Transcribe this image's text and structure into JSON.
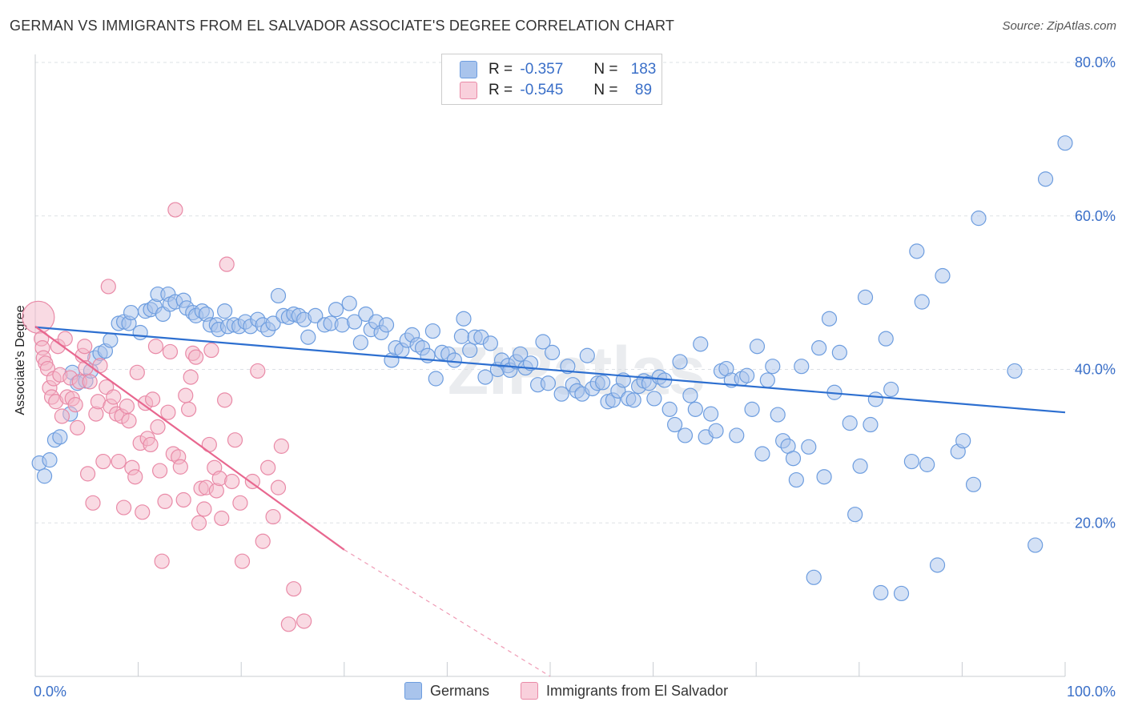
{
  "title": "GERMAN VS IMMIGRANTS FROM EL SALVADOR ASSOCIATE'S DEGREE CORRELATION CHART",
  "source": "Source: ZipAtlas.com",
  "watermark": "ZIPatlas",
  "legend": {
    "rows": [
      {
        "r_label": "R =",
        "r_value": "-0.357",
        "n_label": "N =",
        "n_value": "183",
        "color": "#a9c4ec"
      },
      {
        "r_label": "R =",
        "r_value": "-0.545",
        "n_label": "N =",
        "n_value": "89",
        "color": "#f4b6c8"
      }
    ]
  },
  "chart_data": {
    "type": "scatter",
    "title": "GERMAN VS IMMIGRANTS FROM EL SALVADOR ASSOCIATE'S DEGREE CORRELATION CHART",
    "xlabel": "",
    "ylabel": "Associate's Degree",
    "xlim": [
      0,
      100
    ],
    "ylim": [
      0,
      80
    ],
    "x_tick_labels": [
      "0.0%",
      "100.0%"
    ],
    "y_ticks": [
      20,
      40,
      60,
      80
    ],
    "y_tick_labels": [
      "20.0%",
      "40.0%",
      "60.0%",
      "80.0%"
    ],
    "grid": "horizontal dashed",
    "legend_position": "top-center",
    "series": [
      {
        "name": "Germans",
        "color": "#a9c4ec",
        "stroke": "#6d9ddf",
        "trend": {
          "x": [
            0,
            100
          ],
          "y": [
            45.5,
            34.4
          ],
          "color": "#2d6fd0"
        },
        "points": [
          [
            0.4,
            27.8
          ],
          [
            0.9,
            26.1
          ],
          [
            1.4,
            28.2
          ],
          [
            1.9,
            30.8
          ],
          [
            2.4,
            31.2
          ],
          [
            3.4,
            34.2
          ],
          [
            3.6,
            39.6
          ],
          [
            4.1,
            38.2
          ],
          [
            4.9,
            38.5
          ],
          [
            5.4,
            39.8
          ],
          [
            5.8,
            41.5
          ],
          [
            6.3,
            42.1
          ],
          [
            6.8,
            42.4
          ],
          [
            7.3,
            43.8
          ],
          [
            8.1,
            46.0
          ],
          [
            8.6,
            46.2
          ],
          [
            9.1,
            46.0
          ],
          [
            9.3,
            47.4
          ],
          [
            10.2,
            44.8
          ],
          [
            10.7,
            47.6
          ],
          [
            11.2,
            47.8
          ],
          [
            11.6,
            48.2
          ],
          [
            11.9,
            49.8
          ],
          [
            12.4,
            47.2
          ],
          [
            12.9,
            49.8
          ],
          [
            13.1,
            48.5
          ],
          [
            13.6,
            48.8
          ],
          [
            14.4,
            49.0
          ],
          [
            14.7,
            48.0
          ],
          [
            15.3,
            47.4
          ],
          [
            15.6,
            47.0
          ],
          [
            16.2,
            47.6
          ],
          [
            16.6,
            47.2
          ],
          [
            17.0,
            45.8
          ],
          [
            17.6,
            45.8
          ],
          [
            17.8,
            45.2
          ],
          [
            18.4,
            47.6
          ],
          [
            18.7,
            45.6
          ],
          [
            19.3,
            45.8
          ],
          [
            19.8,
            45.6
          ],
          [
            20.4,
            46.2
          ],
          [
            20.9,
            45.6
          ],
          [
            21.6,
            46.5
          ],
          [
            22.1,
            45.8
          ],
          [
            22.6,
            45.2
          ],
          [
            23.1,
            46.0
          ],
          [
            23.6,
            49.6
          ],
          [
            24.1,
            47.0
          ],
          [
            24.6,
            46.8
          ],
          [
            25.1,
            47.2
          ],
          [
            25.6,
            47.0
          ],
          [
            26.1,
            46.5
          ],
          [
            26.5,
            44.2
          ],
          [
            27.2,
            47.0
          ],
          [
            28.1,
            45.8
          ],
          [
            28.7,
            46.0
          ],
          [
            29.2,
            47.8
          ],
          [
            29.8,
            45.8
          ],
          [
            30.5,
            48.6
          ],
          [
            31.0,
            46.2
          ],
          [
            31.6,
            43.5
          ],
          [
            32.1,
            47.2
          ],
          [
            32.6,
            45.2
          ],
          [
            33.1,
            46.2
          ],
          [
            33.6,
            44.8
          ],
          [
            34.1,
            45.8
          ],
          [
            34.6,
            41.2
          ],
          [
            35.0,
            42.8
          ],
          [
            35.6,
            42.5
          ],
          [
            36.1,
            43.8
          ],
          [
            36.6,
            44.5
          ],
          [
            37.1,
            43.2
          ],
          [
            37.6,
            42.8
          ],
          [
            38.1,
            41.8
          ],
          [
            38.6,
            45.0
          ],
          [
            38.9,
            38.8
          ],
          [
            39.5,
            42.2
          ],
          [
            40.1,
            42.0
          ],
          [
            40.7,
            41.2
          ],
          [
            41.4,
            44.3
          ],
          [
            41.6,
            46.6
          ],
          [
            42.2,
            42.5
          ],
          [
            42.7,
            44.2
          ],
          [
            43.3,
            44.2
          ],
          [
            43.7,
            39.0
          ],
          [
            44.2,
            43.4
          ],
          [
            44.9,
            40.0
          ],
          [
            45.3,
            41.2
          ],
          [
            45.9,
            40.5
          ],
          [
            46.1,
            39.9
          ],
          [
            46.7,
            41.0
          ],
          [
            47.1,
            42.0
          ],
          [
            47.6,
            40.2
          ],
          [
            48.1,
            40.8
          ],
          [
            48.8,
            38.0
          ],
          [
            49.3,
            43.6
          ],
          [
            49.8,
            38.2
          ],
          [
            50.2,
            42.2
          ],
          [
            51.1,
            36.8
          ],
          [
            51.7,
            40.4
          ],
          [
            52.2,
            38.0
          ],
          [
            52.6,
            37.2
          ],
          [
            53.1,
            36.8
          ],
          [
            53.6,
            41.8
          ],
          [
            54.1,
            37.5
          ],
          [
            54.6,
            38.2
          ],
          [
            55.1,
            38.3
          ],
          [
            55.6,
            35.8
          ],
          [
            56.1,
            36.0
          ],
          [
            56.6,
            37.2
          ],
          [
            57.1,
            38.6
          ],
          [
            57.6,
            36.2
          ],
          [
            58.1,
            36.0
          ],
          [
            58.6,
            37.8
          ],
          [
            59.1,
            38.5
          ],
          [
            59.6,
            38.2
          ],
          [
            60.1,
            36.2
          ],
          [
            60.6,
            39.0
          ],
          [
            61.1,
            38.6
          ],
          [
            61.6,
            34.8
          ],
          [
            62.1,
            32.8
          ],
          [
            62.6,
            41.0
          ],
          [
            63.1,
            31.4
          ],
          [
            63.6,
            36.6
          ],
          [
            64.1,
            34.8
          ],
          [
            64.6,
            43.3
          ],
          [
            65.1,
            31.2
          ],
          [
            65.6,
            34.2
          ],
          [
            66.1,
            32.0
          ],
          [
            66.6,
            39.8
          ],
          [
            67.1,
            40.1
          ],
          [
            67.6,
            38.6
          ],
          [
            68.1,
            31.4
          ],
          [
            68.6,
            38.8
          ],
          [
            69.1,
            39.2
          ],
          [
            69.6,
            34.8
          ],
          [
            70.1,
            43.0
          ],
          [
            70.6,
            29.0
          ],
          [
            71.1,
            38.6
          ],
          [
            71.6,
            40.4
          ],
          [
            72.1,
            34.1
          ],
          [
            72.6,
            30.7
          ],
          [
            73.1,
            30.0
          ],
          [
            73.6,
            28.4
          ],
          [
            73.9,
            25.6
          ],
          [
            74.4,
            40.4
          ],
          [
            75.1,
            29.9
          ],
          [
            75.6,
            12.9
          ],
          [
            76.1,
            42.8
          ],
          [
            76.6,
            26.0
          ],
          [
            77.1,
            46.6
          ],
          [
            77.6,
            37.0
          ],
          [
            78.1,
            42.2
          ],
          [
            79.1,
            33.0
          ],
          [
            79.6,
            21.1
          ],
          [
            80.1,
            27.4
          ],
          [
            80.6,
            49.4
          ],
          [
            81.1,
            32.8
          ],
          [
            81.6,
            36.1
          ],
          [
            82.1,
            10.9
          ],
          [
            82.6,
            44.0
          ],
          [
            83.1,
            37.4
          ],
          [
            84.1,
            10.8
          ],
          [
            85.1,
            28.0
          ],
          [
            85.6,
            55.4
          ],
          [
            86.1,
            48.8
          ],
          [
            86.6,
            27.6
          ],
          [
            87.6,
            14.5
          ],
          [
            88.1,
            52.2
          ],
          [
            89.6,
            29.3
          ],
          [
            90.1,
            30.7
          ],
          [
            91.1,
            25.0
          ],
          [
            91.6,
            59.7
          ],
          [
            95.1,
            39.8
          ],
          [
            97.1,
            17.1
          ],
          [
            98.1,
            64.8
          ],
          [
            100.0,
            69.5
          ]
        ]
      },
      {
        "name": "Immigrants from El Salvador",
        "color": "#f4b6c8",
        "stroke": "#e98aa7",
        "trend": {
          "x": [
            0,
            30.0
          ],
          "y": [
            45.6,
            16.5
          ],
          "color": "#e8678f"
        },
        "trend_dashed": {
          "x": [
            30.0,
            50.0
          ],
          "y": [
            16.5,
            0
          ],
          "color": "#ef9ab4"
        },
        "points": [
          [
            0.3,
            46.8
          ],
          [
            0.6,
            44.0
          ],
          [
            0.7,
            42.8
          ],
          [
            0.8,
            41.5
          ],
          [
            1.0,
            40.8
          ],
          [
            1.2,
            40.1
          ],
          [
            1.4,
            37.6
          ],
          [
            1.6,
            36.4
          ],
          [
            1.8,
            38.8
          ],
          [
            2.0,
            35.8
          ],
          [
            2.2,
            43.0
          ],
          [
            2.4,
            39.3
          ],
          [
            2.6,
            33.9
          ],
          [
            2.9,
            44.0
          ],
          [
            3.1,
            36.4
          ],
          [
            3.4,
            38.9
          ],
          [
            3.6,
            36.2
          ],
          [
            3.9,
            35.4
          ],
          [
            4.1,
            32.4
          ],
          [
            4.3,
            38.4
          ],
          [
            4.6,
            41.8
          ],
          [
            4.8,
            43.0
          ],
          [
            4.9,
            40.2
          ],
          [
            5.1,
            26.4
          ],
          [
            5.3,
            38.4
          ],
          [
            5.6,
            22.6
          ],
          [
            5.9,
            34.2
          ],
          [
            6.1,
            35.8
          ],
          [
            6.3,
            40.5
          ],
          [
            6.6,
            28.0
          ],
          [
            6.9,
            37.7
          ],
          [
            7.1,
            50.8
          ],
          [
            7.3,
            35.2
          ],
          [
            7.6,
            36.4
          ],
          [
            7.9,
            34.2
          ],
          [
            8.1,
            28.0
          ],
          [
            8.4,
            33.9
          ],
          [
            8.6,
            22.0
          ],
          [
            8.9,
            35.2
          ],
          [
            9.1,
            33.3
          ],
          [
            9.4,
            27.2
          ],
          [
            9.7,
            26.0
          ],
          [
            9.9,
            39.6
          ],
          [
            10.2,
            30.4
          ],
          [
            10.4,
            21.4
          ],
          [
            10.7,
            35.6
          ],
          [
            10.9,
            31.0
          ],
          [
            11.2,
            30.2
          ],
          [
            11.4,
            36.1
          ],
          [
            11.7,
            43.0
          ],
          [
            11.9,
            32.5
          ],
          [
            12.1,
            26.8
          ],
          [
            12.3,
            15.0
          ],
          [
            12.6,
            22.8
          ],
          [
            12.9,
            34.4
          ],
          [
            13.1,
            42.3
          ],
          [
            13.4,
            29.0
          ],
          [
            13.6,
            60.8
          ],
          [
            13.9,
            28.6
          ],
          [
            14.1,
            27.3
          ],
          [
            14.4,
            23.0
          ],
          [
            14.6,
            36.6
          ],
          [
            14.9,
            34.8
          ],
          [
            15.1,
            39.0
          ],
          [
            15.3,
            42.1
          ],
          [
            15.6,
            41.6
          ],
          [
            15.9,
            20.0
          ],
          [
            16.1,
            24.5
          ],
          [
            16.4,
            21.8
          ],
          [
            16.6,
            24.6
          ],
          [
            16.9,
            30.2
          ],
          [
            17.1,
            42.5
          ],
          [
            17.4,
            27.2
          ],
          [
            17.6,
            24.2
          ],
          [
            17.9,
            25.8
          ],
          [
            18.1,
            20.6
          ],
          [
            18.4,
            36.0
          ],
          [
            18.6,
            53.7
          ],
          [
            19.1,
            25.4
          ],
          [
            19.4,
            30.8
          ],
          [
            19.9,
            22.6
          ],
          [
            20.1,
            15.0
          ],
          [
            21.1,
            25.4
          ],
          [
            21.6,
            39.8
          ],
          [
            22.1,
            17.6
          ],
          [
            22.6,
            27.2
          ],
          [
            23.1,
            20.8
          ],
          [
            23.6,
            24.6
          ],
          [
            23.9,
            30.0
          ],
          [
            24.6,
            6.8
          ],
          [
            25.1,
            11.4
          ],
          [
            26.1,
            7.2
          ]
        ]
      }
    ]
  }
}
